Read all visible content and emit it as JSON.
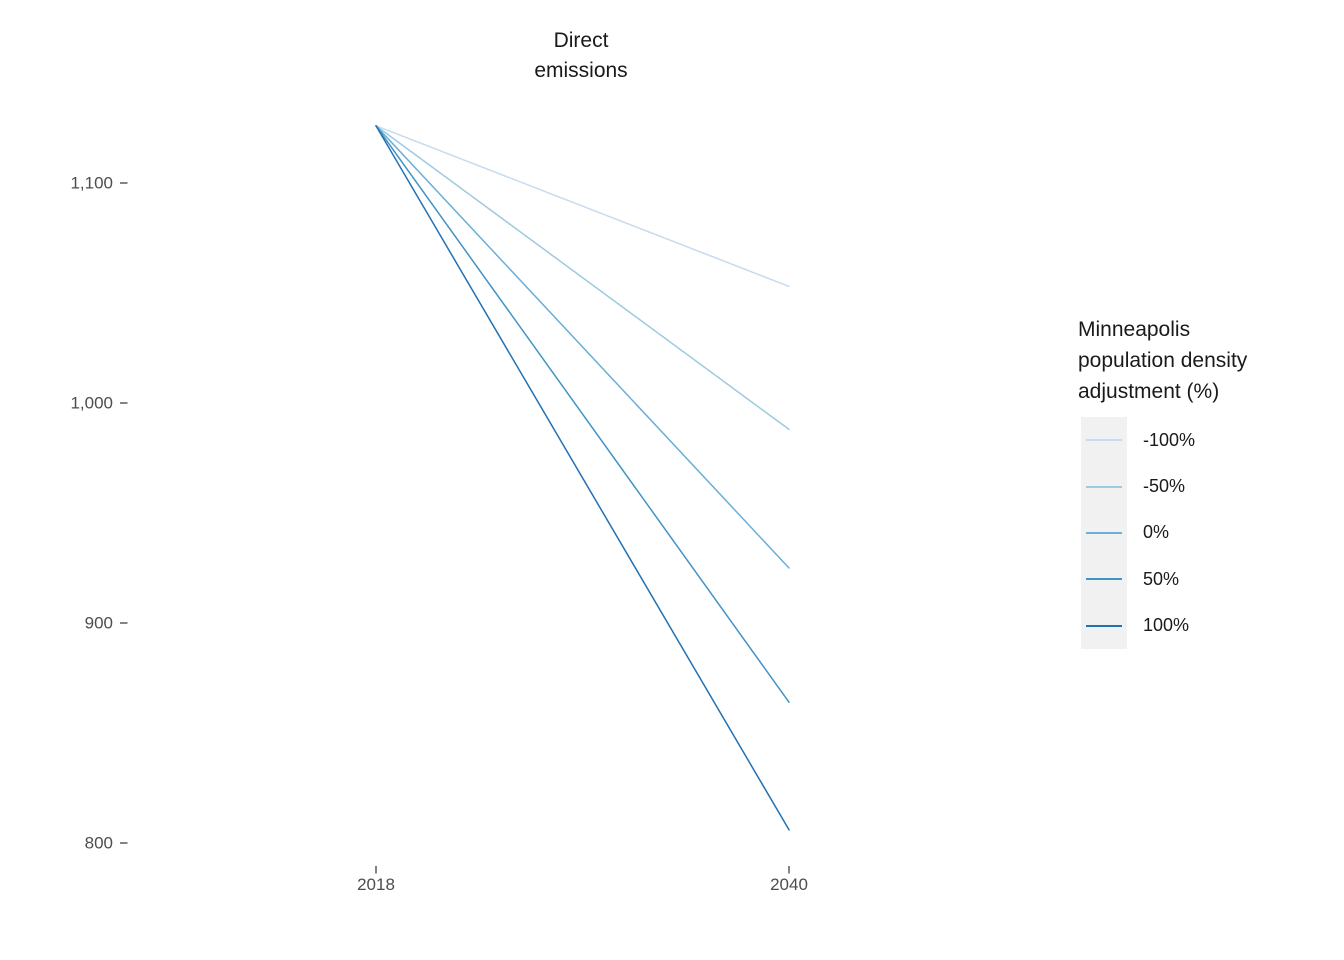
{
  "page": {
    "background": "#FFFFFF"
  },
  "chart_data": {
    "type": "line",
    "title": "Direct\nemissions",
    "xlabel": "",
    "ylabel": "",
    "x": [
      2018,
      2040
    ],
    "x_ticks": [
      {
        "value": 2018,
        "label": "2018"
      },
      {
        "value": 2040,
        "label": "2040"
      }
    ],
    "y_ticks": [
      {
        "value": 800,
        "label": "800"
      },
      {
        "value": 900,
        "label": "900"
      },
      {
        "value": 1000,
        "label": "1,000"
      },
      {
        "value": 1100,
        "label": "1,100"
      }
    ],
    "y_range": [
      790,
      1135
    ],
    "grid": false,
    "axis_text_color": "#4D4D4D",
    "tick_color": "#333333",
    "legend": {
      "position": "right",
      "title": "Minneapolis\npopulation density\nadjustment (%)",
      "key_background": "#F1F1F1"
    },
    "series": [
      {
        "name": "-100%",
        "color": "#C6DBEF",
        "values": [
          1126,
          1053
        ]
      },
      {
        "name": "-50%",
        "color": "#9ECAE1",
        "values": [
          1126,
          988
        ]
      },
      {
        "name": "0%",
        "color": "#6BAED6",
        "values": [
          1126,
          925
        ]
      },
      {
        "name": "50%",
        "color": "#4292C6",
        "values": [
          1126,
          864
        ]
      },
      {
        "name": "100%",
        "color": "#2171B5",
        "values": [
          1126,
          806
        ]
      }
    ]
  }
}
